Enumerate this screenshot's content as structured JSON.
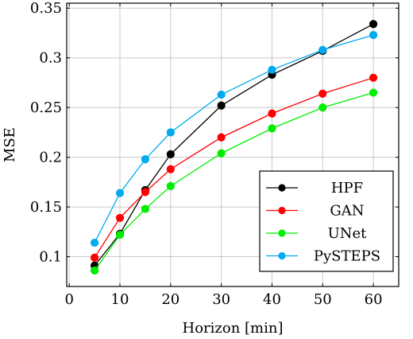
{
  "chart_data": {
    "type": "line",
    "xlabel": "Horizon [min]",
    "ylabel": "MSE",
    "xlim": [
      -0.5,
      65
    ],
    "ylim": [
      0.07,
      0.355
    ],
    "xticks": [
      0,
      10,
      20,
      30,
      40,
      50,
      60
    ],
    "yticks": [
      0.1,
      0.15,
      0.2,
      0.25,
      0.3,
      0.35
    ],
    "ytick_labels": [
      "0.1",
      "0.15",
      "0.2",
      "0.25",
      "0.3",
      "0.35"
    ],
    "grid": true,
    "legend_position": "bottom-right",
    "x": [
      5,
      10,
      15,
      20,
      30,
      40,
      50,
      60
    ],
    "series": [
      {
        "name": "HPF",
        "color": "#000000",
        "values": [
          0.091,
          0.123,
          0.167,
          0.203,
          0.252,
          0.283,
          0.307,
          0.334
        ]
      },
      {
        "name": "GAN",
        "color": "#ff0000",
        "values": [
          0.099,
          0.139,
          0.165,
          0.188,
          0.22,
          0.244,
          0.264,
          0.28
        ]
      },
      {
        "name": "UNet",
        "color": "#00ee00",
        "values": [
          0.086,
          0.122,
          0.148,
          0.171,
          0.204,
          0.229,
          0.25,
          0.265
        ]
      },
      {
        "name": "PySTEPS",
        "color": "#00aaee",
        "values": [
          0.114,
          0.164,
          0.198,
          0.225,
          0.263,
          0.288,
          0.308,
          0.323
        ]
      }
    ]
  }
}
